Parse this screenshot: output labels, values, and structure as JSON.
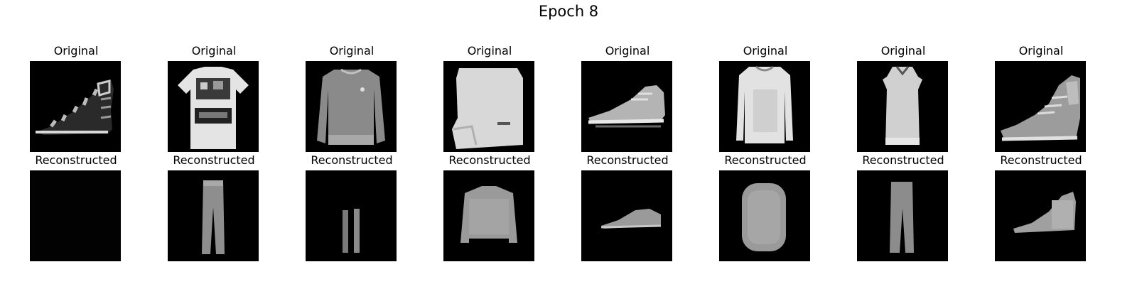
{
  "figure": {
    "title": "Epoch 8"
  },
  "rows": [
    {
      "label": "Original",
      "items": [
        {
          "item": "sandal"
        },
        {
          "item": "t-shirt"
        },
        {
          "item": "pullover"
        },
        {
          "item": "shirt"
        },
        {
          "item": "sneaker"
        },
        {
          "item": "pullover"
        },
        {
          "item": "dress"
        },
        {
          "item": "ankle boot"
        }
      ]
    },
    {
      "label": "Reconstructed",
      "items": [
        {
          "item": "blank"
        },
        {
          "item": "trouser"
        },
        {
          "item": "trouser"
        },
        {
          "item": "pullover"
        },
        {
          "item": "sneaker"
        },
        {
          "item": "bag"
        },
        {
          "item": "trouser"
        },
        {
          "item": "ankle boot"
        }
      ]
    }
  ]
}
